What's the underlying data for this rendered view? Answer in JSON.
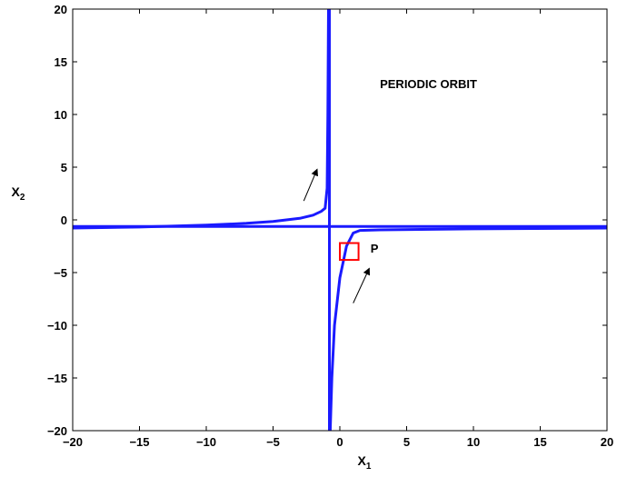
{
  "chart_data": {
    "type": "line",
    "title": "",
    "xlabel": "X",
    "xlabel_sub": "1",
    "ylabel": "X",
    "ylabel_sub": "2",
    "xlim": [
      -20,
      20
    ],
    "ylim": [
      -20,
      20
    ],
    "xticks": [
      -20,
      -15,
      -10,
      -5,
      0,
      5,
      10,
      15,
      20
    ],
    "yticks": [
      -20,
      -15,
      -10,
      -5,
      0,
      5,
      10,
      15,
      20
    ],
    "grid": false,
    "line_color": "#1a1aff",
    "series": [
      {
        "values": [
          [
            -20,
            -0.78
          ],
          [
            -15,
            -0.68
          ],
          [
            -10,
            -0.5
          ],
          [
            -7,
            -0.33
          ],
          [
            -5,
            -0.15
          ],
          [
            -3,
            0.15
          ],
          [
            -2,
            0.45
          ],
          [
            -1.4,
            0.8
          ],
          [
            -1.1,
            1.1
          ],
          [
            -0.95,
            3
          ],
          [
            -0.9,
            10
          ],
          [
            -0.85,
            20
          ]
        ]
      },
      {
        "values": [
          [
            -20,
            -0.62
          ],
          [
            20,
            -0.62
          ]
        ]
      },
      {
        "values": [
          [
            -0.78,
            -20
          ],
          [
            -0.78,
            20
          ]
        ]
      },
      {
        "values": [
          [
            -0.72,
            -20
          ],
          [
            -0.6,
            -15
          ],
          [
            -0.4,
            -10
          ],
          [
            0,
            -5.5
          ],
          [
            0.5,
            -2.5
          ],
          [
            1,
            -1.25
          ],
          [
            1.5,
            -1.0
          ],
          [
            3,
            -0.95
          ],
          [
            10,
            -0.85
          ],
          [
            20,
            -0.78
          ]
        ]
      }
    ],
    "annotations": [
      {
        "text": "PERIODIC ORBIT",
        "x": 3,
        "y": 12.5
      },
      {
        "text": "P",
        "x": 2.3,
        "y": -3.1
      }
    ],
    "marker_box": {
      "x_range": [
        0,
        1.4
      ],
      "y_range": [
        -3.8,
        -2.2
      ],
      "color": "#ff0000"
    },
    "arrows": [
      {
        "from": [
          -2.7,
          1.8
        ],
        "to": [
          -1.7,
          4.8
        ]
      },
      {
        "from": [
          1.0,
          -7.9
        ],
        "to": [
          2.2,
          -4.6
        ]
      }
    ]
  }
}
